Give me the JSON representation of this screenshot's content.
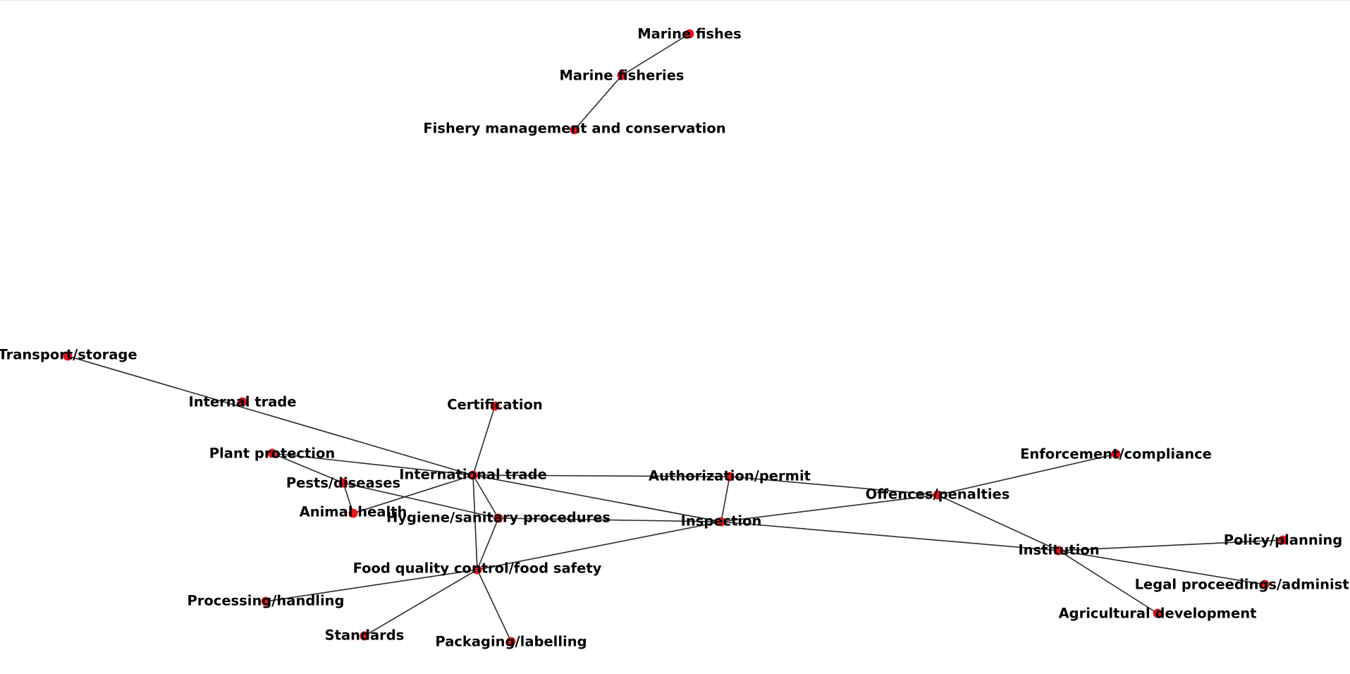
{
  "graph": {
    "colors": {
      "node": "#e8161b",
      "edge": "#2b2b2b",
      "label": "#000000",
      "background": "#ffffff"
    },
    "nodes": [
      {
        "id": "marine_fishes",
        "label": "Marine fishes"
      },
      {
        "id": "marine_fisheries",
        "label": "Marine fisheries"
      },
      {
        "id": "fishery_mgmt",
        "label": "Fishery management and conservation"
      },
      {
        "id": "transport",
        "label": "Transport/storage"
      },
      {
        "id": "internal_trade",
        "label": "Internal trade"
      },
      {
        "id": "certification",
        "label": "Certification"
      },
      {
        "id": "plant_protection",
        "label": "Plant protection"
      },
      {
        "id": "international_trade",
        "label": "International trade"
      },
      {
        "id": "pests",
        "label": "Pests/diseases"
      },
      {
        "id": "animal_health",
        "label": "Animal health"
      },
      {
        "id": "hygiene",
        "label": "Hygiene/sanitary procedures"
      },
      {
        "id": "authorization",
        "label": "Authorization/permit"
      },
      {
        "id": "inspection",
        "label": "Inspection"
      },
      {
        "id": "offences",
        "label": "Offences/penalties"
      },
      {
        "id": "enforcement",
        "label": "Enforcement/compliance"
      },
      {
        "id": "institution",
        "label": "Institution"
      },
      {
        "id": "policy",
        "label": "Policy/planning"
      },
      {
        "id": "legal",
        "label": "Legal proceedings/administrative"
      },
      {
        "id": "agri_dev",
        "label": "Agricultural development"
      },
      {
        "id": "food_quality",
        "label": "Food quality control/food safety"
      },
      {
        "id": "processing",
        "label": "Processing/handling"
      },
      {
        "id": "standards",
        "label": "Standards"
      },
      {
        "id": "packaging",
        "label": "Packaging/labelling"
      }
    ],
    "edges": [
      [
        "marine_fishes",
        "marine_fisheries"
      ],
      [
        "marine_fisheries",
        "fishery_mgmt"
      ],
      [
        "transport",
        "international_trade"
      ],
      [
        "certification",
        "international_trade"
      ],
      [
        "plant_protection",
        "pests"
      ],
      [
        "plant_protection",
        "international_trade"
      ],
      [
        "pests",
        "animal_health"
      ],
      [
        "pests",
        "hygiene"
      ],
      [
        "animal_health",
        "international_trade"
      ],
      [
        "international_trade",
        "hygiene"
      ],
      [
        "international_trade",
        "food_quality"
      ],
      [
        "international_trade",
        "authorization"
      ],
      [
        "international_trade",
        "inspection"
      ],
      [
        "hygiene",
        "food_quality"
      ],
      [
        "hygiene",
        "inspection"
      ],
      [
        "authorization",
        "inspection"
      ],
      [
        "authorization",
        "offences"
      ],
      [
        "inspection",
        "offences"
      ],
      [
        "inspection",
        "institution"
      ],
      [
        "inspection",
        "food_quality"
      ],
      [
        "offences",
        "enforcement"
      ],
      [
        "offences",
        "institution"
      ],
      [
        "institution",
        "policy"
      ],
      [
        "institution",
        "legal"
      ],
      [
        "institution",
        "agri_dev"
      ],
      [
        "food_quality",
        "processing"
      ],
      [
        "food_quality",
        "standards"
      ],
      [
        "food_quality",
        "packaging"
      ]
    ]
  }
}
